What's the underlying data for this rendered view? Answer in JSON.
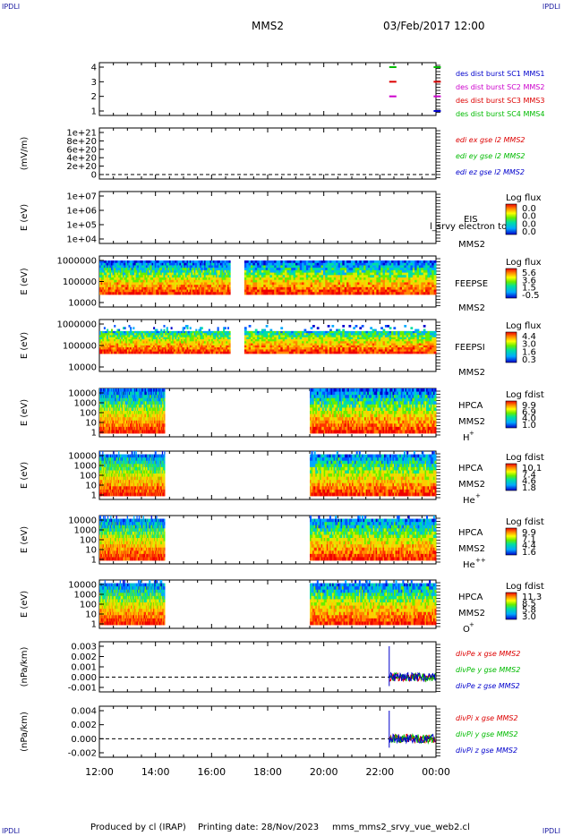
{
  "corner_label": "IPDLI",
  "header": {
    "spacecraft": "MMS2",
    "datetime": "03/Feb/2017 12:00"
  },
  "footer": {
    "produced_by": "Produced by cl (IRAP)",
    "printing_date": "Printing date: 28/Nov/2023",
    "filename": "mms_mms2_srvy_vue_web2.cl"
  },
  "colors": {
    "mms1": "#0000cc",
    "mms2": "#cc00cc",
    "mms3": "#dd0000",
    "mms4": "#00bb00",
    "x": "#dd0000",
    "y": "#00bb00",
    "z": "#0000cc"
  },
  "chart_data": {
    "type": "multi-panel time series",
    "x_axis": {
      "ticks": [
        "12:00",
        "14:00",
        "16:00",
        "18:00",
        "20:00",
        "22:00",
        "00:00"
      ]
    },
    "panels": [
      {
        "id": "burst",
        "type": "scatter",
        "ylabel": "",
        "yticks": [
          "4",
          "3",
          "2",
          "1"
        ],
        "series": [
          {
            "name": "des dist burst SC1 MMS1",
            "color": "#0000cc",
            "level": 1,
            "times": [
              "23:55"
            ]
          },
          {
            "name": "des dist burst SC2 MMS2",
            "color": "#cc00cc",
            "level": 2,
            "times": [
              "22:20",
              "23:55"
            ]
          },
          {
            "name": "des dist burst SC3 MMS3",
            "color": "#dd0000",
            "level": 3,
            "times": [
              "22:20",
              "23:55"
            ]
          },
          {
            "name": "des dist burst SC4 MMS4",
            "color": "#00bb00",
            "level": 4,
            "times": [
              "22:20",
              "23:55"
            ]
          }
        ]
      },
      {
        "id": "edi",
        "type": "line",
        "ylabel": "(mV/m)",
        "yticks": [
          "1e+21",
          "8e+20",
          "6e+20",
          "4e+20",
          "2e+20",
          "0"
        ],
        "series": [
          "edi ex gse l2 MMS2",
          "edi ey gse l2 MMS2",
          "edi ez gse l2 MMS2"
        ]
      },
      {
        "id": "eis",
        "type": "heatmap",
        "ylabel": "E (eV)",
        "yticks": [
          "1e+07",
          "1e+06",
          "1e+05",
          "1e+04"
        ],
        "instrument": "EIS",
        "overlay_text": "l_srvy electron to",
        "spacecraft": "MMS2",
        "colorbar": {
          "title": "Log flux",
          "ticks": [
            "0.0",
            "0.0",
            "0.0",
            "0.0"
          ]
        }
      },
      {
        "id": "feeps_e",
        "type": "heatmap",
        "ylabel": "E (eV)",
        "yticks": [
          "1000000",
          "100000",
          "10000"
        ],
        "instrument": "FEEPSE",
        "spacecraft": "MMS2",
        "colorbar": {
          "title": "Log flux",
          "ticks": [
            "5.6",
            "3.6",
            "1.5",
            "-0.5"
          ]
        }
      },
      {
        "id": "feeps_i",
        "type": "heatmap",
        "ylabel": "E (eV)",
        "yticks": [
          "1000000",
          "100000",
          "10000"
        ],
        "instrument": "FEEPSI",
        "spacecraft": "MMS2",
        "colorbar": {
          "title": "Log flux",
          "ticks": [
            "4.4",
            "3.0",
            "1.6",
            "0.3"
          ]
        }
      },
      {
        "id": "hpca_h",
        "type": "heatmap",
        "ylabel": "E (eV)",
        "yticks": [
          "10000",
          "1000",
          "100",
          "10",
          "1"
        ],
        "instrument": "HPCA",
        "spacecraft": "MMS2",
        "species": "H",
        "species_sup": "+",
        "colorbar": {
          "title": "Log fdist",
          "ticks": [
            "9.9",
            "6.9",
            "4.0",
            "1.0"
          ]
        }
      },
      {
        "id": "hpca_he",
        "type": "heatmap",
        "ylabel": "E (eV)",
        "yticks": [
          "10000",
          "1000",
          "100",
          "10",
          "1"
        ],
        "instrument": "HPCA",
        "spacecraft": "MMS2",
        "species": "He",
        "species_sup": "+",
        "colorbar": {
          "title": "Log fdist",
          "ticks": [
            "10.1",
            "7.4",
            "4.6",
            "1.8"
          ]
        }
      },
      {
        "id": "hpca_he2",
        "type": "heatmap",
        "ylabel": "E (eV)",
        "yticks": [
          "10000",
          "1000",
          "100",
          "10",
          "1"
        ],
        "instrument": "HPCA",
        "spacecraft": "MMS2",
        "species": "He",
        "species_sup": "++",
        "colorbar": {
          "title": "Log fdist",
          "ticks": [
            "9.9",
            "7.1",
            "4.4",
            "1.6"
          ]
        }
      },
      {
        "id": "hpca_o",
        "type": "heatmap",
        "ylabel": "E (eV)",
        "yticks": [
          "10000",
          "1000",
          "100",
          "10",
          "1"
        ],
        "instrument": "HPCA",
        "spacecraft": "MMS2",
        "species": "O",
        "species_sup": "+",
        "colorbar": {
          "title": "Log fdist",
          "ticks": [
            "11.3",
            "8.5",
            "5.8",
            "3.0"
          ]
        }
      },
      {
        "id": "divpe",
        "type": "line",
        "ylabel": "(nPa/km)",
        "yticks": [
          "0.003",
          "0.002",
          "0.001",
          "0.000",
          "-0.001"
        ],
        "series": [
          "divPe x gse MMS2",
          "divPe y gse MMS2",
          "divPe z gse MMS2"
        ]
      },
      {
        "id": "divpi",
        "type": "line",
        "ylabel": "(nPa/km)",
        "yticks": [
          "0.004",
          "0.002",
          "0.000",
          "-0.002"
        ],
        "series": [
          "divPi x gse MMS2",
          "divPi y gse MMS2",
          "divPi z gse MMS2"
        ]
      }
    ]
  }
}
